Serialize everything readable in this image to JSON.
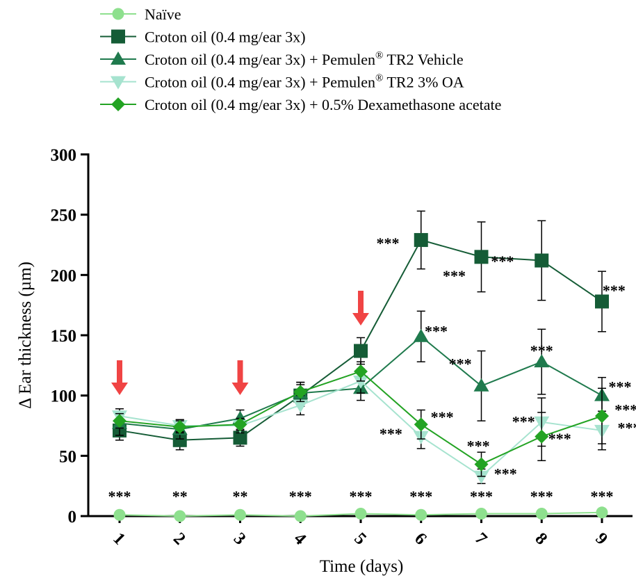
{
  "chart_data": {
    "type": "line",
    "xlabel": "Time (days)",
    "ylabel": "Δ Ear thickness (µm)",
    "ylim": [
      0,
      300
    ],
    "y_ticks": [
      "0",
      "50",
      "100",
      "150",
      "200",
      "250",
      "300"
    ],
    "x": [
      1,
      2,
      3,
      4,
      5,
      6,
      7,
      8,
      9
    ],
    "x_tick_labels": [
      "1",
      "2",
      "3",
      "4",
      "5",
      "6",
      "7",
      "8",
      "9"
    ],
    "series": [
      {
        "name": "Naïve",
        "marker": "circle",
        "color": "#8ee08e",
        "values": [
          1,
          0,
          1,
          0,
          2,
          1,
          2,
          2,
          3
        ],
        "errors": [
          1,
          1,
          1,
          1,
          1,
          1,
          1,
          1,
          1
        ]
      },
      {
        "name": "Croton oil (0.4 mg/ear 3x)",
        "marker": "square",
        "color": "#155c36",
        "values": [
          71,
          63,
          65,
          100,
          137,
          229,
          215,
          212,
          178
        ],
        "errors": [
          8,
          8,
          7,
          9,
          11,
          24,
          29,
          33,
          25
        ]
      },
      {
        "name": "Croton oil (0.4 mg/ear 3x) + Pemulen® TR2 Vehicle",
        "marker": "triangle-up",
        "color": "#1f7a4d",
        "values": [
          77,
          72,
          81,
          102,
          106,
          149,
          108,
          128,
          100
        ],
        "errors": [
          10,
          8,
          7,
          9,
          10,
          21,
          29,
          27,
          15
        ]
      },
      {
        "name": "Croton oil (0.4 mg/ear 3x) + Pemulen® TR2 3% OA",
        "marker": "triangle-down",
        "color": "#a6e3cf",
        "values": [
          83,
          75,
          75,
          92,
          112,
          66,
          33,
          78,
          71
        ],
        "errors": [
          6,
          5,
          6,
          8,
          10,
          10,
          6,
          20,
          16
        ]
      },
      {
        "name": "Croton oil (0.4 mg/ear 3x) + 0.5% Dexamethasone acetate",
        "marker": "diamond",
        "color": "#23a323",
        "values": [
          79,
          74,
          76,
          103,
          120,
          76,
          43,
          66,
          83
        ],
        "errors": [
          6,
          5,
          5,
          8,
          8,
          12,
          10,
          20,
          23
        ]
      }
    ],
    "annotations": {
      "arrow_days": [
        1,
        3,
        5
      ],
      "arrow_color": "#f04444",
      "significance": [
        {
          "text": "***",
          "x": 1,
          "y": 12
        },
        {
          "text": "**",
          "x": 2,
          "y": 12
        },
        {
          "text": "**",
          "x": 3,
          "y": 12
        },
        {
          "text": "***",
          "x": 4,
          "y": 12
        },
        {
          "text": "***",
          "x": 5,
          "y": 12
        },
        {
          "text": "***",
          "x": 6,
          "y": 12
        },
        {
          "text": "***",
          "x": 7,
          "y": 12
        },
        {
          "text": "***",
          "x": 8,
          "y": 12
        },
        {
          "text": "***",
          "x": 9,
          "y": 12
        },
        {
          "text": "***",
          "x": 5.45,
          "y": 222
        },
        {
          "text": "***",
          "x": 7.35,
          "y": 207
        },
        {
          "text": "***",
          "x": 6.55,
          "y": 195
        },
        {
          "text": "***",
          "x": 9.2,
          "y": 183
        },
        {
          "text": "***",
          "x": 6.25,
          "y": 149
        },
        {
          "text": "***",
          "x": 8.0,
          "y": 133
        },
        {
          "text": "***",
          "x": 6.65,
          "y": 122
        },
        {
          "text": "***",
          "x": 9.3,
          "y": 103
        },
        {
          "text": "***",
          "x": 6.35,
          "y": 78
        },
        {
          "text": "***",
          "x": 7.7,
          "y": 74
        },
        {
          "text": "***",
          "x": 9.4,
          "y": 84
        },
        {
          "text": "***",
          "x": 5.5,
          "y": 64
        },
        {
          "text": "***",
          "x": 9.45,
          "y": 69
        },
        {
          "text": "***",
          "x": 8.3,
          "y": 60
        },
        {
          "text": "***",
          "x": 6.95,
          "y": 54
        },
        {
          "text": "***",
          "x": 7.4,
          "y": 31
        }
      ]
    }
  }
}
